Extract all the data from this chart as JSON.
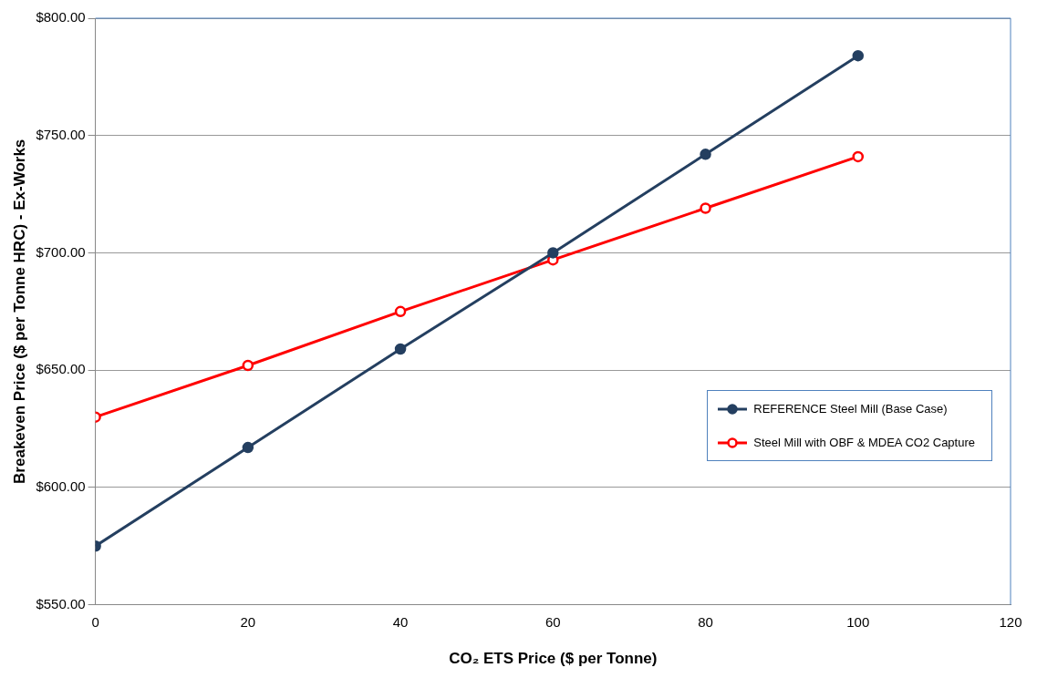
{
  "chart_data": {
    "type": "line",
    "xlabel": "CO₂ ETS Price ($ per Tonne)",
    "ylabel": "Breakeven Price ($ per Tonne HRC) - Ex-Works",
    "x": [
      0,
      20,
      40,
      60,
      80,
      100
    ],
    "series": [
      {
        "name": "REFERENCE Steel Mill (Base Case)",
        "color": "#243f60",
        "values": [
          575,
          617,
          659,
          700,
          742,
          784
        ],
        "marker": "circle"
      },
      {
        "name": "Steel Mill with OBF & MDEA CO2 Capture",
        "color": "#ff0000",
        "values": [
          630,
          652,
          675,
          697,
          719,
          741
        ],
        "marker": "circle"
      }
    ],
    "xlim": [
      0,
      120
    ],
    "xticks": [
      0,
      20,
      40,
      60,
      80,
      100,
      120
    ],
    "ylim": [
      550,
      800
    ],
    "yticks": [
      {
        "value": 550,
        "label": "$550.00"
      },
      {
        "value": 600,
        "label": "$600.00"
      },
      {
        "value": 650,
        "label": "$650.00"
      },
      {
        "value": 700,
        "label": "$700.00"
      },
      {
        "value": 750,
        "label": "$750.00"
      },
      {
        "value": 800,
        "label": "$800.00"
      }
    ],
    "grid": "y",
    "legend": "right",
    "line_style": "solid"
  }
}
